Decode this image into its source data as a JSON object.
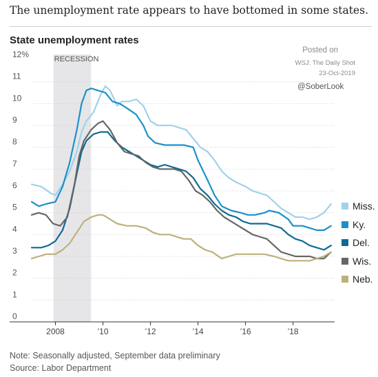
{
  "headline": "The unemployment rate appears to have bottomed in some states.",
  "posted": {
    "line1": "Posted on",
    "line2": "WSJ: The Daily Shot",
    "line3": "23-Oct-2019",
    "handle": "@SoberLook"
  },
  "notes": {
    "line1": "Note: Seasonally adjusted, September data preliminary",
    "line2": "Source: Labor Department"
  },
  "chart_data": {
    "type": "line",
    "title": "State unemployment rates",
    "xlabel": "",
    "ylabel": "",
    "ylim": [
      0,
      12
    ],
    "xlim": [
      2007.0,
      2019.75
    ],
    "y_ticks": [
      {
        "value": 12,
        "label": "12%"
      },
      {
        "value": 11,
        "label": "11"
      },
      {
        "value": 10,
        "label": "10"
      },
      {
        "value": 9,
        "label": "9"
      },
      {
        "value": 8,
        "label": "8"
      },
      {
        "value": 7,
        "label": "7"
      },
      {
        "value": 6,
        "label": "6"
      },
      {
        "value": 5,
        "label": "5"
      },
      {
        "value": 4,
        "label": "4"
      },
      {
        "value": 3,
        "label": "3"
      },
      {
        "value": 2,
        "label": "2"
      },
      {
        "value": 1,
        "label": "1"
      },
      {
        "value": 0,
        "label": "0"
      }
    ],
    "x_ticks": [
      {
        "value": 2008,
        "label": "2008"
      },
      {
        "value": 2010,
        "label": "’10"
      },
      {
        "value": 2012,
        "label": "’12"
      },
      {
        "value": 2014,
        "label": "’14"
      },
      {
        "value": 2016,
        "label": "’16"
      },
      {
        "value": 2018,
        "label": "’18"
      }
    ],
    "recession": {
      "start": 2007.917,
      "end": 2009.5,
      "label": "RECESSION"
    },
    "grid": "horizontal",
    "legend_position": "right",
    "series": [
      {
        "name": "Miss.",
        "color": "#9fd2ea",
        "points": [
          [
            2007.0,
            6.3
          ],
          [
            2007.4,
            6.2
          ],
          [
            2007.8,
            5.9
          ],
          [
            2008.0,
            5.8
          ],
          [
            2008.3,
            6.3
          ],
          [
            2008.6,
            6.9
          ],
          [
            2008.9,
            7.8
          ],
          [
            2009.1,
            8.7
          ],
          [
            2009.3,
            9.2
          ],
          [
            2009.6,
            9.6
          ],
          [
            2009.9,
            10.4
          ],
          [
            2010.1,
            10.8
          ],
          [
            2010.3,
            10.6
          ],
          [
            2010.6,
            9.9
          ],
          [
            2010.8,
            10.1
          ],
          [
            2011.1,
            10.1
          ],
          [
            2011.4,
            10.2
          ],
          [
            2011.7,
            9.9
          ],
          [
            2012.0,
            9.2
          ],
          [
            2012.3,
            9.0
          ],
          [
            2012.6,
            9.0
          ],
          [
            2012.9,
            9.0
          ],
          [
            2013.2,
            8.9
          ],
          [
            2013.5,
            8.8
          ],
          [
            2013.8,
            8.4
          ],
          [
            2014.1,
            8.0
          ],
          [
            2014.4,
            7.8
          ],
          [
            2014.7,
            7.4
          ],
          [
            2015.0,
            6.9
          ],
          [
            2015.3,
            6.6
          ],
          [
            2015.6,
            6.4
          ],
          [
            2016.0,
            6.2
          ],
          [
            2016.3,
            6.0
          ],
          [
            2016.6,
            5.9
          ],
          [
            2016.9,
            5.8
          ],
          [
            2017.2,
            5.5
          ],
          [
            2017.5,
            5.2
          ],
          [
            2017.8,
            5.0
          ],
          [
            2018.1,
            4.8
          ],
          [
            2018.4,
            4.8
          ],
          [
            2018.7,
            4.7
          ],
          [
            2019.0,
            4.8
          ],
          [
            2019.3,
            5.0
          ],
          [
            2019.6,
            5.4
          ]
        ]
      },
      {
        "name": "Ky.",
        "color": "#1a90c8",
        "points": [
          [
            2007.0,
            5.5
          ],
          [
            2007.3,
            5.3
          ],
          [
            2007.6,
            5.4
          ],
          [
            2008.0,
            5.5
          ],
          [
            2008.3,
            6.2
          ],
          [
            2008.6,
            7.3
          ],
          [
            2008.9,
            8.8
          ],
          [
            2009.1,
            10.0
          ],
          [
            2009.3,
            10.6
          ],
          [
            2009.5,
            10.7
          ],
          [
            2009.8,
            10.6
          ],
          [
            2010.1,
            10.5
          ],
          [
            2010.4,
            10.1
          ],
          [
            2010.7,
            10.0
          ],
          [
            2011.0,
            9.8
          ],
          [
            2011.4,
            9.5
          ],
          [
            2011.7,
            9.0
          ],
          [
            2011.9,
            8.5
          ],
          [
            2012.2,
            8.2
          ],
          [
            2012.6,
            8.1
          ],
          [
            2013.0,
            8.1
          ],
          [
            2013.4,
            8.1
          ],
          [
            2013.8,
            8.0
          ],
          [
            2014.0,
            7.4
          ],
          [
            2014.4,
            6.5
          ],
          [
            2014.7,
            5.8
          ],
          [
            2015.0,
            5.3
          ],
          [
            2015.4,
            5.1
          ],
          [
            2015.8,
            5.0
          ],
          [
            2016.1,
            4.9
          ],
          [
            2016.4,
            4.9
          ],
          [
            2016.8,
            5.0
          ],
          [
            2017.0,
            5.1
          ],
          [
            2017.4,
            5.0
          ],
          [
            2017.8,
            4.7
          ],
          [
            2018.0,
            4.4
          ],
          [
            2018.4,
            4.4
          ],
          [
            2018.7,
            4.3
          ],
          [
            2019.0,
            4.2
          ],
          [
            2019.3,
            4.2
          ],
          [
            2019.6,
            4.4
          ]
        ]
      },
      {
        "name": "Del.",
        "color": "#0e6a93",
        "points": [
          [
            2007.0,
            3.4
          ],
          [
            2007.4,
            3.4
          ],
          [
            2007.7,
            3.5
          ],
          [
            2008.0,
            3.7
          ],
          [
            2008.3,
            4.2
          ],
          [
            2008.6,
            5.2
          ],
          [
            2008.9,
            6.8
          ],
          [
            2009.1,
            7.8
          ],
          [
            2009.3,
            8.3
          ],
          [
            2009.6,
            8.6
          ],
          [
            2009.9,
            8.7
          ],
          [
            2010.2,
            8.7
          ],
          [
            2010.5,
            8.3
          ],
          [
            2010.8,
            8.0
          ],
          [
            2011.1,
            7.8
          ],
          [
            2011.4,
            7.6
          ],
          [
            2011.7,
            7.4
          ],
          [
            2012.0,
            7.2
          ],
          [
            2012.3,
            7.1
          ],
          [
            2012.6,
            7.2
          ],
          [
            2012.9,
            7.1
          ],
          [
            2013.2,
            7.0
          ],
          [
            2013.5,
            6.9
          ],
          [
            2013.8,
            6.6
          ],
          [
            2014.1,
            6.1
          ],
          [
            2014.4,
            5.8
          ],
          [
            2014.7,
            5.4
          ],
          [
            2015.0,
            5.1
          ],
          [
            2015.3,
            4.9
          ],
          [
            2015.6,
            4.8
          ],
          [
            2015.9,
            4.6
          ],
          [
            2016.2,
            4.5
          ],
          [
            2016.6,
            4.5
          ],
          [
            2016.9,
            4.5
          ],
          [
            2017.2,
            4.4
          ],
          [
            2017.5,
            4.3
          ],
          [
            2017.8,
            4.0
          ],
          [
            2018.1,
            3.8
          ],
          [
            2018.4,
            3.7
          ],
          [
            2018.7,
            3.5
          ],
          [
            2019.0,
            3.4
          ],
          [
            2019.3,
            3.3
          ],
          [
            2019.6,
            3.5
          ]
        ]
      },
      {
        "name": "Wis.",
        "color": "#666666",
        "points": [
          [
            2007.0,
            4.9
          ],
          [
            2007.3,
            5.0
          ],
          [
            2007.6,
            4.9
          ],
          [
            2007.9,
            4.5
          ],
          [
            2008.2,
            4.4
          ],
          [
            2008.5,
            4.8
          ],
          [
            2008.8,
            6.3
          ],
          [
            2009.0,
            7.6
          ],
          [
            2009.2,
            8.3
          ],
          [
            2009.5,
            8.8
          ],
          [
            2009.8,
            9.1
          ],
          [
            2010.0,
            9.2
          ],
          [
            2010.3,
            8.8
          ],
          [
            2010.6,
            8.2
          ],
          [
            2010.9,
            7.8
          ],
          [
            2011.2,
            7.7
          ],
          [
            2011.5,
            7.6
          ],
          [
            2011.8,
            7.3
          ],
          [
            2012.1,
            7.1
          ],
          [
            2012.4,
            7.0
          ],
          [
            2012.7,
            7.0
          ],
          [
            2013.0,
            7.0
          ],
          [
            2013.3,
            6.9
          ],
          [
            2013.6,
            6.5
          ],
          [
            2013.9,
            6.0
          ],
          [
            2014.2,
            5.8
          ],
          [
            2014.5,
            5.5
          ],
          [
            2014.8,
            5.1
          ],
          [
            2015.1,
            4.8
          ],
          [
            2015.4,
            4.6
          ],
          [
            2015.7,
            4.4
          ],
          [
            2016.0,
            4.2
          ],
          [
            2016.3,
            4.0
          ],
          [
            2016.6,
            3.9
          ],
          [
            2016.9,
            3.8
          ],
          [
            2017.2,
            3.5
          ],
          [
            2017.5,
            3.2
          ],
          [
            2017.8,
            3.1
          ],
          [
            2018.1,
            3.0
          ],
          [
            2018.4,
            3.0
          ],
          [
            2018.7,
            3.0
          ],
          [
            2019.0,
            2.9
          ],
          [
            2019.3,
            2.9
          ],
          [
            2019.6,
            3.2
          ]
        ]
      },
      {
        "name": "Neb.",
        "color": "#bdb07a",
        "points": [
          [
            2007.0,
            2.9
          ],
          [
            2007.3,
            3.0
          ],
          [
            2007.6,
            3.1
          ],
          [
            2008.0,
            3.1
          ],
          [
            2008.3,
            3.3
          ],
          [
            2008.6,
            3.6
          ],
          [
            2008.9,
            4.1
          ],
          [
            2009.2,
            4.6
          ],
          [
            2009.5,
            4.8
          ],
          [
            2009.8,
            4.9
          ],
          [
            2010.0,
            4.9
          ],
          [
            2010.3,
            4.7
          ],
          [
            2010.6,
            4.5
          ],
          [
            2011.0,
            4.4
          ],
          [
            2011.4,
            4.4
          ],
          [
            2011.8,
            4.3
          ],
          [
            2012.1,
            4.1
          ],
          [
            2012.4,
            4.0
          ],
          [
            2012.8,
            4.0
          ],
          [
            2013.1,
            3.9
          ],
          [
            2013.4,
            3.8
          ],
          [
            2013.7,
            3.8
          ],
          [
            2014.0,
            3.5
          ],
          [
            2014.3,
            3.3
          ],
          [
            2014.6,
            3.2
          ],
          [
            2015.0,
            2.9
          ],
          [
            2015.3,
            3.0
          ],
          [
            2015.6,
            3.1
          ],
          [
            2016.0,
            3.1
          ],
          [
            2016.4,
            3.1
          ],
          [
            2016.8,
            3.1
          ],
          [
            2017.2,
            3.0
          ],
          [
            2017.5,
            2.9
          ],
          [
            2017.8,
            2.8
          ],
          [
            2018.1,
            2.8
          ],
          [
            2018.4,
            2.8
          ],
          [
            2018.7,
            2.8
          ],
          [
            2019.0,
            2.9
          ],
          [
            2019.3,
            3.0
          ],
          [
            2019.6,
            3.2
          ]
        ]
      }
    ]
  }
}
